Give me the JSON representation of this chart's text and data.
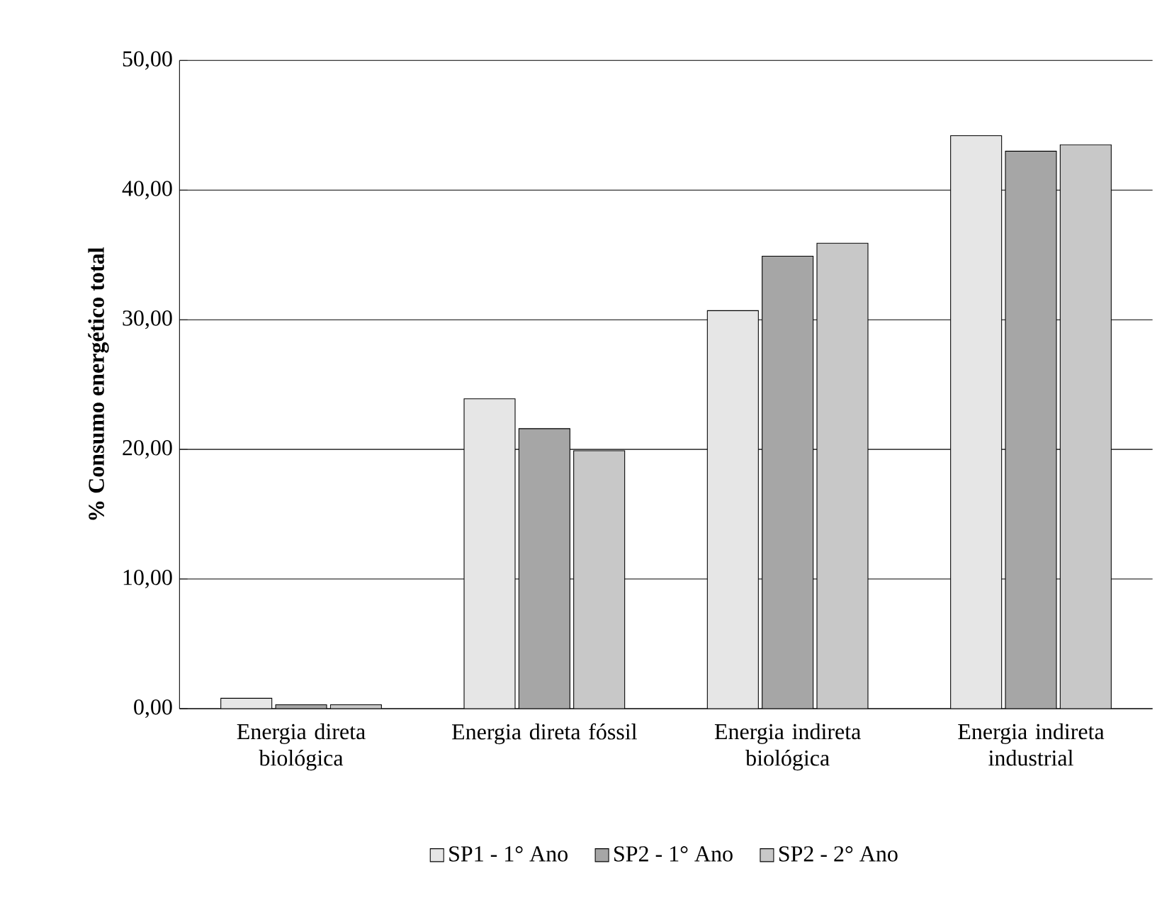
{
  "chart_data": {
    "type": "bar",
    "ylabel": "% Consumo energético total",
    "categories": [
      "Energia direta biológica",
      "Energia direta fóssil",
      "Energia indireta biológica",
      "Energia indireta industrial"
    ],
    "series": [
      {
        "name": "SP1 - 1° Ano",
        "color": "#e6e6e6",
        "values": [
          0.8,
          23.9,
          30.7,
          44.2
        ]
      },
      {
        "name": "SP2 - 1° Ano",
        "color": "#a6a6a6",
        "values": [
          0.3,
          21.6,
          34.9,
          43.0
        ]
      },
      {
        "name": "SP2 - 2° Ano",
        "color": "#c8c8c8",
        "values": [
          0.3,
          19.9,
          35.9,
          43.5
        ]
      }
    ],
    "ylim": [
      0,
      50
    ],
    "yticks": [
      {
        "value": 0,
        "label": "0,00"
      },
      {
        "value": 10,
        "label": "10,00"
      },
      {
        "value": 20,
        "label": "20,00"
      },
      {
        "value": 30,
        "label": "30,00"
      },
      {
        "value": 40,
        "label": "40,00"
      },
      {
        "value": 50,
        "label": "50,00"
      }
    ],
    "grid": "y",
    "legend": "bottom"
  }
}
